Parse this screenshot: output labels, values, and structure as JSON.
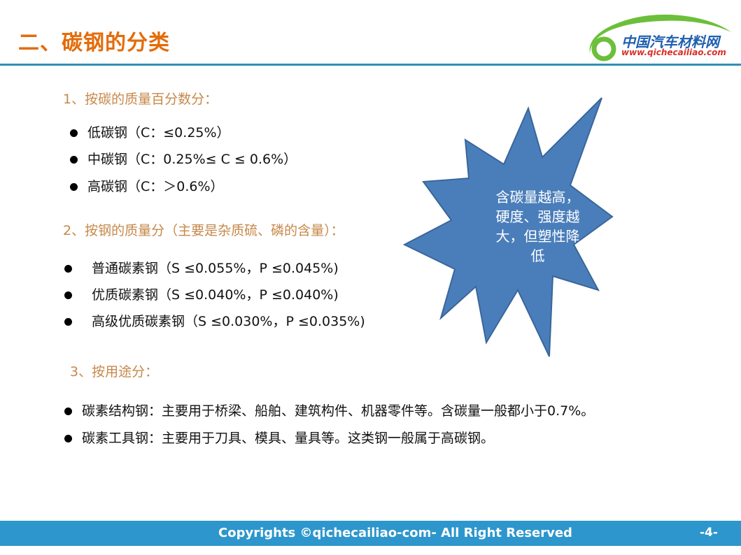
{
  "title": "二、碳钢的分类",
  "logo": {
    "name": "中国汽车材料网",
    "url": "www.qichecailiao.com"
  },
  "sections": [
    {
      "heading": "1、按碳的质量百分数分：",
      "items": [
        "低碳钢（C：≤0.25%）",
        "中碳钢（C：0.25%≤  C ≤ 0.6%）",
        "高碳钢（C：＞0.6%）"
      ]
    },
    {
      "heading": "2、按钢的质量分（主要是杂质硫、磷的含量）：",
      "items": [
        "普通碳素钢（S  ≤0.055%，P  ≤0.045%)",
        "优质碳素钢（S  ≤0.040%，P  ≤0.040%)",
        "高级优质碳素钢（S  ≤0.030%，P  ≤0.035%)"
      ]
    },
    {
      "heading": "3、按用途分：",
      "items": [
        "碳素结构钢：主要用于桥梁、船舶、建筑构件、机器零件等。含碳量一般都小于0.7%。",
        "碳素工具钢：主要用于刀具、模具、量具等。这类钢一般属于高碳钢。"
      ]
    }
  ],
  "callout": {
    "lines": [
      "含碳量越高，",
      "硬度、强度越",
      "大，但塑性降",
      "低"
    ],
    "color": "#4a7ebb"
  },
  "footer": {
    "copyright": "Copyrights ©qichecailiao-com- All Right Reserved",
    "page": "-4-"
  }
}
